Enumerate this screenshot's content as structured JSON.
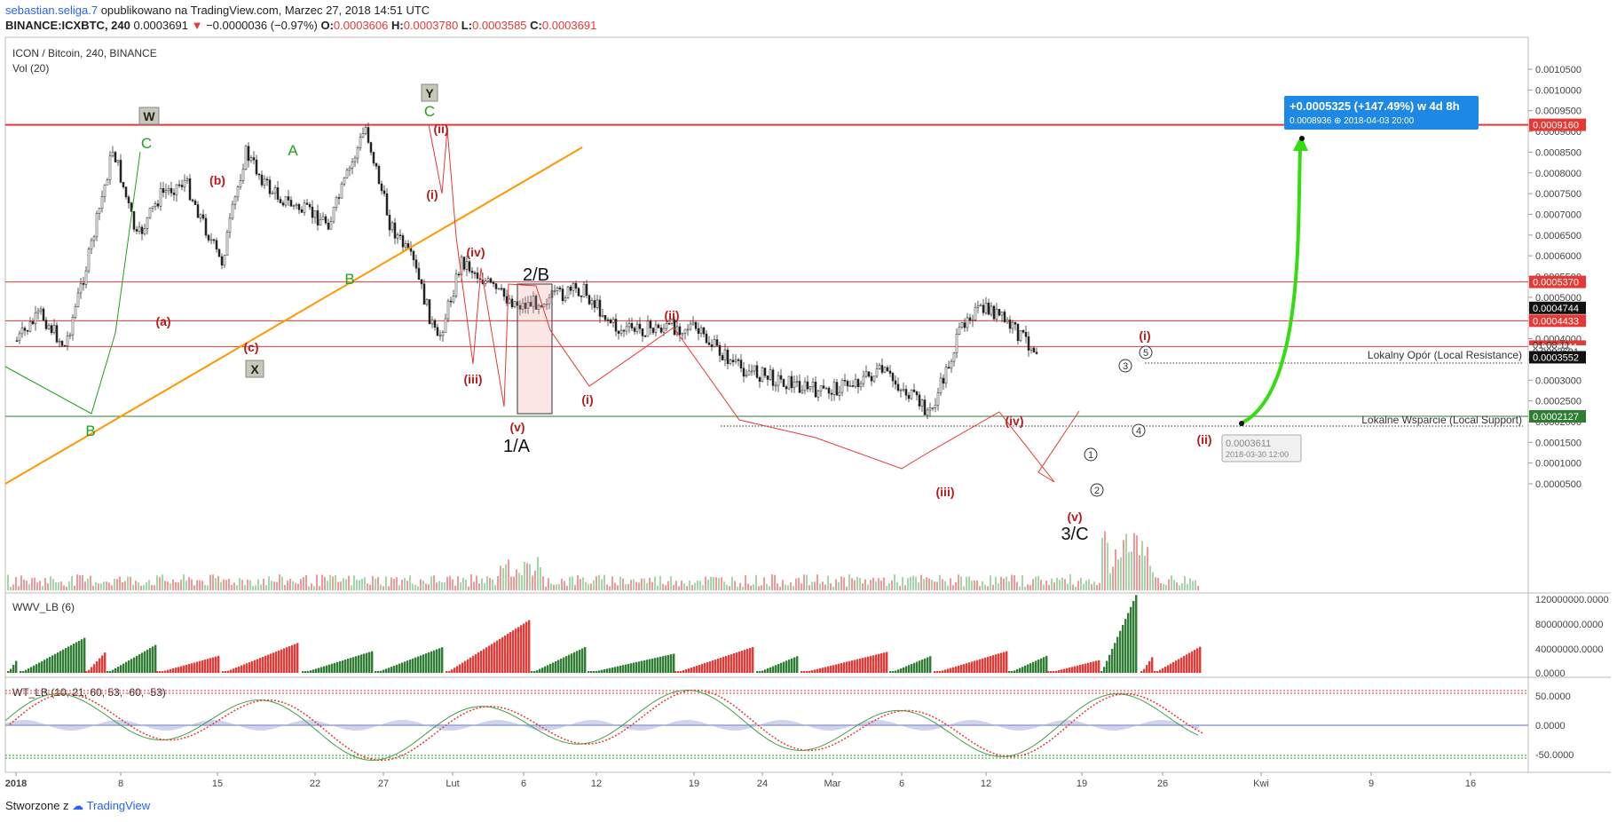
{
  "header": {
    "user": "sebastian.seliga.7",
    "published": "opublikowano na TradingView.com, Marzec 27, 2018 14:51 UTC",
    "symbol": "BINANCE:ICXBTC, 240",
    "last": "0.0003691",
    "change": "−0.0000036 (−0.97%)",
    "o_label": "O:",
    "o": "0.0003606",
    "h_label": "H:",
    "h": "0.0003780",
    "l_label": "L:",
    "l": "0.0003585",
    "c_label": "C:",
    "c": "0.0003691"
  },
  "footer": {
    "created_with": "Stworzone z",
    "brand": "TradingView"
  },
  "colors": {
    "up": "#26a69a",
    "down": "#ef5350",
    "wave_red": "#b71c1c",
    "wave_green": "#22a11c",
    "level": "#e53935",
    "trend": "#ff9800",
    "target": "#2196f3",
    "arrow": "#33dd11"
  },
  "chart_data": [
    {
      "type": "line",
      "title": "ICON / Bitcoin, 240, BINANCE",
      "subtitle": "Vol (20)",
      "ylim": [
        5e-05,
        0.00105
      ],
      "y_ticks": [
        "0.0010500",
        "0.0010000",
        "0.0009500",
        "0.0009000",
        "0.0008500",
        "0.0008000",
        "0.0007500",
        "0.0007000",
        "0.0006500",
        "0.0006000",
        "0.0005500",
        "0.0005000",
        "0.0004500",
        "0.0004000",
        "0.0003500",
        "0.0003000",
        "0.0002500",
        "0.0002000",
        "0.0001500",
        "0.0001000",
        "0.0000500"
      ],
      "x_ticks": [
        "2018",
        "8",
        "15",
        "22",
        "27",
        "Lut",
        "6",
        "12",
        "19",
        "24",
        "Mar",
        "6",
        "12",
        "19",
        "26",
        "Kwi",
        "9",
        "16"
      ],
      "price_path": [
        {
          "x": "2018-01-01",
          "y": 0.000395
        },
        {
          "x": "2018-01-03",
          "y": 0.00046
        },
        {
          "x": "2018-01-05",
          "y": 0.00038
        },
        {
          "x": "2018-01-07",
          "y": 0.0006
        },
        {
          "x": "2018-01-09",
          "y": 0.00086
        },
        {
          "x": "2018-01-11",
          "y": 0.00064
        },
        {
          "x": "2018-01-13",
          "y": 0.00075
        },
        {
          "x": "2018-01-15",
          "y": 0.00078
        },
        {
          "x": "2018-01-18",
          "y": 0.00058
        },
        {
          "x": "2018-01-20",
          "y": 0.00085
        },
        {
          "x": "2018-01-22",
          "y": 0.00076
        },
        {
          "x": "2018-01-24",
          "y": 0.00072
        },
        {
          "x": "2018-01-27",
          "y": 0.00068
        },
        {
          "x": "2018-01-30",
          "y": 0.00091
        },
        {
          "x": "2018-02-01",
          "y": 0.00068
        },
        {
          "x": "2018-02-03",
          "y": 0.00058
        },
        {
          "x": "2018-02-05",
          "y": 0.00039
        },
        {
          "x": "2018-02-07",
          "y": 0.00059
        },
        {
          "x": "2018-02-10",
          "y": 0.00051
        },
        {
          "x": "2018-02-12",
          "y": 0.00048
        },
        {
          "x": "2018-02-17",
          "y": 0.00052
        },
        {
          "x": "2018-02-20",
          "y": 0.00042
        },
        {
          "x": "2018-02-26",
          "y": 0.00043
        },
        {
          "x": "2018-03-02",
          "y": 0.00033
        },
        {
          "x": "2018-03-09",
          "y": 0.00027
        },
        {
          "x": "2018-03-14",
          "y": 0.00032
        },
        {
          "x": "2018-03-18",
          "y": 0.00022
        },
        {
          "x": "2018-03-21",
          "y": 0.00046
        },
        {
          "x": "2018-03-23",
          "y": 0.00047
        },
        {
          "x": "2018-03-27",
          "y": 0.000369
        }
      ],
      "levels": [
        {
          "price": 0.000916,
          "label": "0.0009160",
          "color": "#e53935"
        },
        {
          "price": 0.000537,
          "label": "0.0005370",
          "color": "#e53935"
        },
        {
          "price": 0.0004433,
          "label": "0.0004433",
          "color": "#e53935"
        },
        {
          "price": 0.0003811,
          "label": "0.0003811",
          "color": "#e53935"
        },
        {
          "price": 0.0002127,
          "label": "0.0002127",
          "color": "#2e7d32"
        }
      ],
      "price_badges": [
        {
          "price": 0.0004744,
          "label": "0.0004744"
        },
        {
          "price": 0.0003691,
          "label": "0.0003691"
        },
        {
          "price": 0.0003552,
          "label": "0.0003552"
        }
      ],
      "countdown": "01:08:11",
      "support_label": "Lokalne Wsparcie (Local Support)",
      "resistance_label": "Lokalny Opór (Local Resistance)",
      "target_box": {
        "line1": "+0.0005325 (+147.49%) w 4d 8h",
        "line2": "0.0008936  ⊕ 2018-04-03  20:00"
      },
      "cursor_box": {
        "line1": "0.0003611",
        "line2": "2018-03-30 12:00"
      },
      "waves": {
        "green": [
          "C",
          "A",
          "B",
          "B",
          "C"
        ],
        "boxes": [
          "W",
          "X",
          "Y"
        ],
        "red": [
          "(a)",
          "(b)",
          "(c)",
          "(i)",
          "(ii)",
          "(iii)",
          "(iv)",
          "(v)",
          "(i)",
          "(ii)",
          "(iii)",
          "(iv)",
          "(v)",
          "(i)",
          "(ii)"
        ],
        "black": [
          "1/A",
          "2/B",
          "3/C"
        ],
        "circled": [
          "1",
          "2",
          "3",
          "4",
          "5"
        ]
      }
    },
    {
      "type": "bar",
      "title": "WWV_LB (6)",
      "y_ticks": [
        "120000000.0000",
        "80000000.0000",
        "40000000.0000",
        "0.0000"
      ]
    },
    {
      "type": "line",
      "title": "WT_LB (10, 21, 60, 53, -60, -53)",
      "y_ticks": [
        "50.0000",
        "0.0000",
        "-50.0000"
      ],
      "levels": [
        60,
        53,
        -53,
        -60
      ]
    }
  ]
}
